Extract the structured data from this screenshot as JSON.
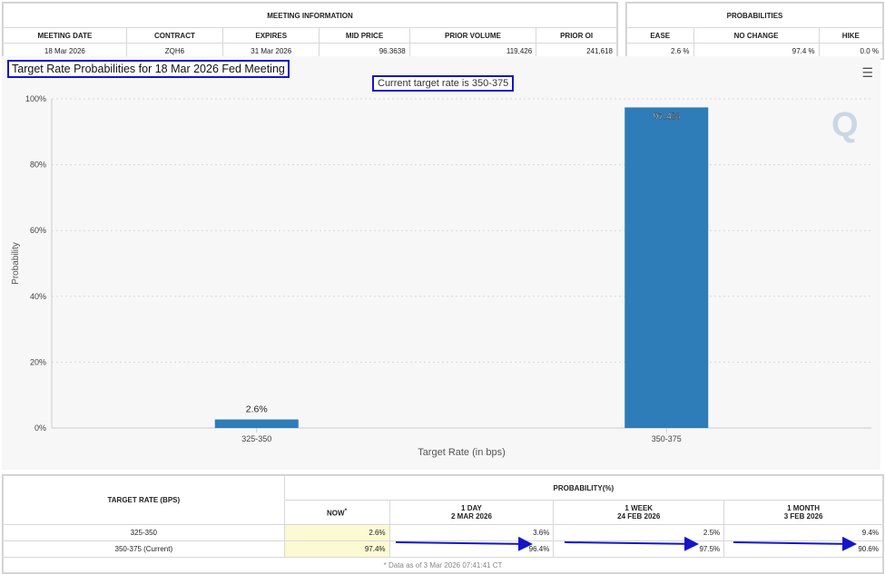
{
  "meeting_info": {
    "header": "MEETING INFORMATION",
    "columns": [
      "MEETING DATE",
      "CONTRACT",
      "EXPIRES",
      "MID PRICE",
      "PRIOR VOLUME",
      "PRIOR OI"
    ],
    "row": [
      "18 Mar 2026",
      "ZQH6",
      "31 Mar 2026",
      "96.3638",
      "119,426",
      "241,618"
    ]
  },
  "probabilities": {
    "header": "PROBABILITIES",
    "columns": [
      "EASE",
      "NO CHANGE",
      "HIKE"
    ],
    "row": [
      "2.6 %",
      "97.4 %",
      "0.0 %"
    ]
  },
  "chart_data": {
    "type": "bar",
    "title": "Target Rate Probabilities for 18 Mar 2026 Fed Meeting",
    "subtitle": "Current target rate is 350-375",
    "categories": [
      "325-350",
      "350-375"
    ],
    "values": [
      2.6,
      97.4
    ],
    "data_labels": [
      "2.6%",
      "97.4%"
    ],
    "xlabel": "Target Rate (in bps)",
    "ylabel": "Probability",
    "ylim": [
      0,
      100
    ],
    "yticks": [
      "0%",
      "20%",
      "40%",
      "60%",
      "80%",
      "100%"
    ],
    "grid": true,
    "bar_color": "#2e7cb8",
    "logo_text": "Q",
    "menu_icon": "hamburger-menu-icon"
  },
  "history_table": {
    "rate_header": "TARGET RATE (BPS)",
    "prob_header": "PROBABILITY(%)",
    "col_now": "NOW",
    "col_now_marker": "*",
    "cols": [
      {
        "line1": "1 DAY",
        "line2": "2 MAR 2026"
      },
      {
        "line1": "1 WEEK",
        "line2": "24 FEB 2026"
      },
      {
        "line1": "1 MONTH",
        "line2": "3 FEB 2026"
      }
    ],
    "rows": [
      {
        "rate": "325-350",
        "now": "2.6%",
        "d1": "3.6%",
        "w1": "2.5%",
        "m1": "9.4%"
      },
      {
        "rate": "350-375 (Current)",
        "now": "97.4%",
        "d1": "96.4%",
        "w1": "97.5%",
        "m1": "90.6%"
      }
    ],
    "note": "* Data as of 3 Mar 2026 07:41:41 CT"
  }
}
